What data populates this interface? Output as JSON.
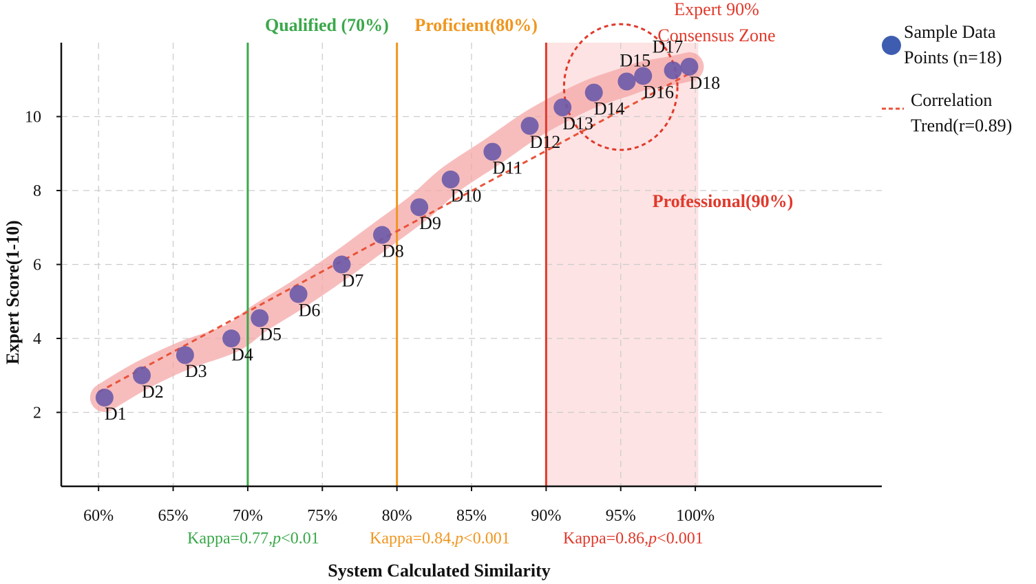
{
  "chart_data": {
    "type": "scatter",
    "xlabel": "System Calculated Similarity",
    "ylabel": "Expert Score(1-10)",
    "xlim": [
      57.5,
      112.5
    ],
    "ylim": [
      0,
      12
    ],
    "x_ticks": [
      60,
      65,
      70,
      75,
      80,
      85,
      90,
      95,
      100
    ],
    "x_tick_labels": [
      "60%",
      "65%",
      "70%",
      "75%",
      "80%",
      "85%",
      "90%",
      "95%",
      "100%"
    ],
    "y_ticks": [
      2,
      4,
      6,
      8,
      10
    ],
    "y_tick_labels": [
      "2",
      "4",
      "6",
      "8",
      "10"
    ],
    "grid": true,
    "series": [
      {
        "name": "Sample Data Points (n=18)",
        "color": "#6a5aa8",
        "points": [
          {
            "label": "D1",
            "x": 60.4,
            "y": 2.4
          },
          {
            "label": "D2",
            "x": 62.9,
            "y": 3.0
          },
          {
            "label": "D3",
            "x": 65.8,
            "y": 3.55
          },
          {
            "label": "D4",
            "x": 68.9,
            "y": 4.0
          },
          {
            "label": "D5",
            "x": 70.8,
            "y": 4.55
          },
          {
            "label": "D6",
            "x": 73.4,
            "y": 5.2
          },
          {
            "label": "D7",
            "x": 76.3,
            "y": 6.0
          },
          {
            "label": "D8",
            "x": 79.0,
            "y": 6.8
          },
          {
            "label": "D9",
            "x": 81.5,
            "y": 7.55
          },
          {
            "label": "D10",
            "x": 83.6,
            "y": 8.3
          },
          {
            "label": "D11",
            "x": 86.4,
            "y": 9.05
          },
          {
            "label": "D12",
            "x": 88.9,
            "y": 9.75
          },
          {
            "label": "D13",
            "x": 91.1,
            "y": 10.25
          },
          {
            "label": "D14",
            "x": 93.2,
            "y": 10.65
          },
          {
            "label": "D15",
            "x": 95.4,
            "y": 10.95
          },
          {
            "label": "D16",
            "x": 96.5,
            "y": 11.1
          },
          {
            "label": "D17",
            "x": 98.5,
            "y": 11.25
          },
          {
            "label": "D18",
            "x": 99.6,
            "y": 11.35
          }
        ]
      }
    ],
    "trend": {
      "name": "Correlation Trend(r=0.89)",
      "color": "#e8533a",
      "x": [
        60,
        100
      ],
      "y": [
        2.55,
        11.25
      ]
    },
    "thresholds": [
      {
        "x": 70,
        "label": "Qualified (70%)",
        "color": "#3aa84a",
        "kappa": "Kappa=0.77,",
        "p_italic": "p",
        "p_rest": "<0.01"
      },
      {
        "x": 80,
        "label": "Proficient(80%)",
        "color": "#f0961e",
        "kappa": "Kappa=0.84,",
        "p_italic": "p",
        "p_rest": "<0.001"
      },
      {
        "x": 90,
        "label": "Professional(90%)",
        "color": "#e0392b",
        "kappa": "Kappa=0.86,",
        "p_italic": "p",
        "p_rest": "<0.001"
      }
    ],
    "zone": {
      "x_from": 90,
      "x_to": 100.2,
      "color": "#fde3e3"
    },
    "consensus_zone": {
      "label_line1": "Expert 90%",
      "label_line2": "Consensus Zone",
      "center_x": 95,
      "center_y": 10.8,
      "radius_x": 3.8,
      "radius_y": 1.7,
      "color": "#e0392b"
    },
    "legend": {
      "placement": "right",
      "items": [
        {
          "line1": "Sample Data",
          "line2": "Points (n=18)",
          "symbol": "marker"
        },
        {
          "line1": "Correlation",
          "line2": "Trend(r=0.89)",
          "symbol": "dashed-line"
        }
      ]
    },
    "band_color": "#f4a7a7"
  }
}
